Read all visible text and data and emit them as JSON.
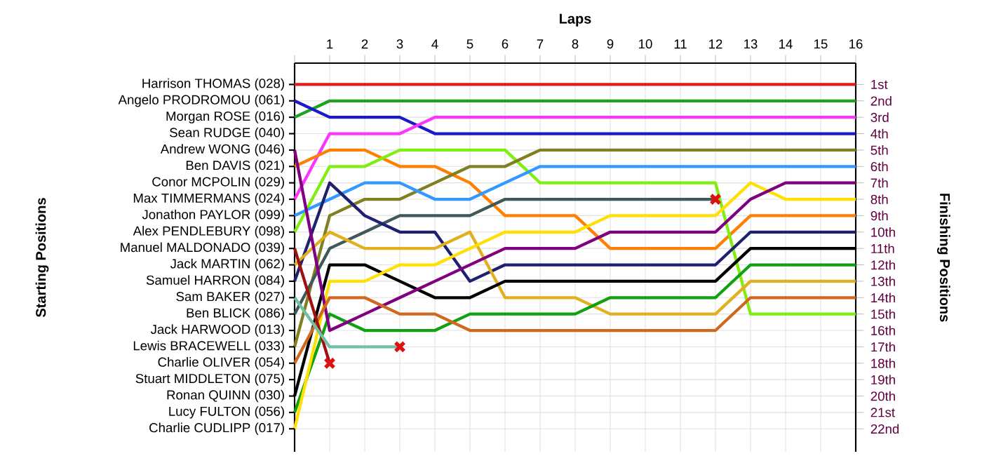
{
  "chart_data": {
    "type": "line",
    "xlabel": "Laps",
    "ylabel": "Finishing Positions",
    "x": [
      0,
      1,
      2,
      3,
      4,
      5,
      6,
      7,
      8,
      9,
      10,
      11,
      12,
      13,
      14,
      15,
      16
    ],
    "xlim": [
      0,
      16
    ],
    "xticks": [
      {
        "value": 0,
        "label": null
      },
      1,
      2,
      3,
      4,
      5,
      6,
      7,
      8,
      9,
      10,
      11,
      12,
      13,
      14,
      15,
      16
    ],
    "ylim": [
      23.4,
      -0.3
    ],
    "yticks": [
      {
        "value": 1,
        "label": "1st"
      },
      {
        "value": 2,
        "label": "2nd"
      },
      {
        "value": 3,
        "label": "3rd"
      },
      {
        "value": 4,
        "label": "4th"
      },
      {
        "value": 5,
        "label": "5th"
      },
      {
        "value": 6,
        "label": "6th"
      },
      {
        "value": 7,
        "label": "7th"
      },
      {
        "value": 8,
        "label": "8th"
      },
      {
        "value": 9,
        "label": "9th"
      },
      {
        "value": 10,
        "label": "10th"
      },
      {
        "value": 11,
        "label": "11th"
      },
      {
        "value": 12,
        "label": "12th"
      },
      {
        "value": 13,
        "label": "13th"
      },
      {
        "value": 14,
        "label": "14th"
      },
      {
        "value": 15,
        "label": "15th"
      },
      {
        "value": 16,
        "label": "16th"
      },
      {
        "value": 17,
        "label": "17th"
      },
      {
        "value": 18,
        "label": "18th"
      },
      {
        "value": 19,
        "label": "19th"
      },
      {
        "value": 20,
        "label": "20th"
      },
      {
        "value": 21,
        "label": "21st"
      },
      {
        "value": 22,
        "label": "22nd"
      }
    ],
    "annotations": [
      "Starting Positions",
      "Harrison THOMAS (028)",
      "Angelo PRODROMOU (061)",
      "Morgan ROSE (016)",
      "Sean RUDGE (040)",
      "Andrew WONG (046)",
      "Ben DAVIS (021)",
      "Conor MCPOLIN (029)",
      "Max TIMMERMANS (024)",
      "Jonathon PAYLOR (099)",
      "Alex PENDLEBURY (098)",
      "Manuel MALDONADO (039)",
      "Jack MARTIN (062)",
      "Samuel HARRON (084)",
      "Sam BAKER (027)",
      "Ben BLICK (086)",
      "Jack HARWOOD (013)",
      "Lewis BRACEWELL (033)",
      "Charlie OLIVER (054)",
      "Stuart MIDDLETON (075)",
      "Ronan QUINN (030)",
      "Lucy FULTON (056)",
      "Charlie CUDLIPP (017)"
    ],
    "grid": true,
    "line_style": "solid",
    "series": [
      {
        "color": "#dd1c1c",
        "values": [
          1,
          1,
          1,
          1,
          1,
          1,
          1,
          1,
          1,
          1,
          1,
          1,
          1,
          1,
          1,
          1,
          1
        ]
      },
      {
        "color": "#22a022",
        "values": [
          3,
          2,
          2,
          2,
          2,
          2,
          2,
          2,
          2,
          2,
          2,
          2,
          2,
          2,
          2,
          2,
          2
        ]
      },
      {
        "color": "#1a1acc",
        "values": [
          2,
          3,
          3,
          3,
          4,
          4,
          4,
          4,
          4,
          4,
          4,
          4,
          4,
          4,
          4,
          4,
          4
        ]
      },
      {
        "color": "#ff33ff",
        "values": [
          8,
          4,
          4,
          4,
          3,
          3,
          3,
          3,
          3,
          3,
          3,
          3,
          3,
          3,
          3,
          3,
          3
        ]
      },
      {
        "color": "#ff8000",
        "values": [
          6,
          5,
          5,
          6,
          6,
          7,
          9,
          9,
          9,
          11,
          11,
          11,
          11,
          9,
          9,
          9,
          9
        ]
      },
      {
        "color": "#80ee10",
        "values": [
          10,
          6,
          6,
          5,
          5,
          5,
          5,
          7,
          7,
          7,
          7,
          7,
          7,
          15,
          15,
          15,
          15
        ]
      },
      {
        "color": "#808020",
        "values": [
          17,
          9,
          8,
          8,
          7,
          6,
          6,
          5,
          5,
          5,
          5,
          5,
          5,
          5,
          5,
          5,
          5
        ]
      },
      {
        "color": "#3399ff",
        "values": [
          9,
          8,
          7,
          7,
          8,
          8,
          7,
          6,
          6,
          6,
          6,
          6,
          6,
          6,
          6,
          6,
          6
        ]
      },
      {
        "color": "#405858",
        "values": [
          15,
          11,
          10,
          9,
          9,
          9,
          8,
          8,
          8,
          8,
          8,
          8,
          8,
          null,
          null,
          null,
          null
        ]
      },
      {
        "color": "#202070",
        "values": [
          13,
          7,
          9,
          10,
          10,
          13,
          12,
          12,
          12,
          12,
          12,
          12,
          12,
          10,
          10,
          10,
          10
        ]
      },
      {
        "color": "#e0b020",
        "values": [
          12,
          10,
          11,
          11,
          11,
          10,
          14,
          14,
          14,
          15,
          15,
          15,
          15,
          13,
          13,
          13,
          13
        ]
      },
      {
        "color": "#10a010",
        "values": [
          21,
          15,
          16,
          16,
          16,
          15,
          15,
          15,
          15,
          14,
          14,
          14,
          14,
          12,
          12,
          12,
          12
        ]
      },
      {
        "color": "#000000",
        "values": [
          20,
          12,
          12,
          13,
          14,
          14,
          13,
          13,
          13,
          13,
          13,
          13,
          13,
          11,
          11,
          11,
          11
        ]
      },
      {
        "color": "#ffe000",
        "values": [
          22,
          13,
          13,
          12,
          12,
          11,
          10,
          10,
          10,
          9,
          9,
          9,
          9,
          7,
          8,
          8,
          8
        ]
      },
      {
        "color": "#800080",
        "values": [
          5,
          16,
          15,
          14,
          13,
          12,
          11,
          11,
          11,
          10,
          10,
          10,
          10,
          8,
          7,
          7,
          7
        ]
      },
      {
        "color": "#d06820",
        "values": [
          18,
          14,
          14,
          15,
          15,
          16,
          16,
          16,
          16,
          16,
          16,
          16,
          16,
          14,
          14,
          14,
          14
        ]
      },
      {
        "color": "#a01010",
        "values": [
          11,
          18,
          null,
          null,
          null,
          null,
          null,
          null,
          null,
          null,
          null,
          null,
          null,
          null,
          null,
          null,
          null
        ]
      },
      {
        "color": "#70c0a8",
        "values": [
          14,
          17,
          17,
          17,
          null,
          null,
          null,
          null,
          null,
          null,
          null,
          null,
          null,
          null,
          null,
          null,
          null
        ]
      },
      {
        "type": "scatter",
        "marker": "cross",
        "color": "#e01010",
        "x": [
          1,
          3,
          12
        ],
        "values": [
          18,
          17,
          8
        ]
      }
    ]
  }
}
